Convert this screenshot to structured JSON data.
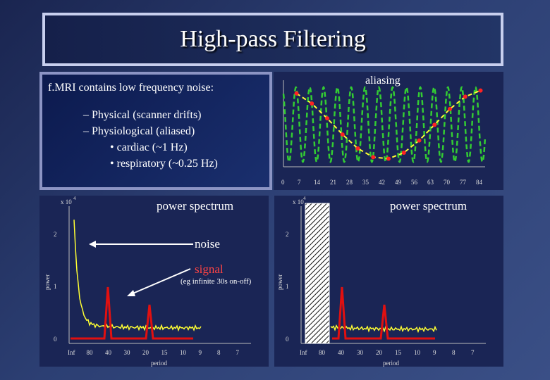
{
  "slide": {
    "title": "High-pass Filtering",
    "intro": "f.MRI contains low frequency noise:",
    "bullets": [
      {
        "text": "Physical (scanner drifts)",
        "level": 1
      },
      {
        "text": "Physiological (aliased)",
        "level": 1
      },
      {
        "text": "cardiac (~1 Hz)",
        "level": 2
      },
      {
        "text": "respiratory (~0.25 Hz)",
        "level": 2
      }
    ],
    "aliasing_label": "aliasing",
    "aliasing_x_ticks": [
      "0",
      "7",
      "14",
      "21",
      "28",
      "35",
      "42",
      "49",
      "56",
      "63",
      "70",
      "77",
      "84"
    ],
    "spectrum_left": {
      "title": "power spectrum",
      "multiplier": "x 10",
      "exponent": "4",
      "y_ticks": [
        "2",
        "1",
        "0"
      ],
      "y_label": "power",
      "x_ticks": [
        "Inf",
        "80",
        "40",
        "30",
        "20",
        "15",
        "10",
        "9",
        "8",
        "7"
      ],
      "x_label": "period",
      "noise_label": "noise",
      "signal_label": "signal",
      "signal_note": "(eg infinite 30s on-off)"
    },
    "spectrum_right": {
      "title": "power spectrum",
      "multiplier": "x 10",
      "exponent": "4",
      "y_ticks": [
        "2",
        "1",
        "0"
      ],
      "y_label": "power",
      "x_ticks": [
        "Inf",
        "80",
        "40",
        "30",
        "20",
        "15",
        "10",
        "9",
        "8",
        "7"
      ],
      "x_label": "period"
    },
    "colors": {
      "signal": "#e11010",
      "noise_trace": "#ffff33",
      "aliasing_wave": "#33cc33",
      "aliased_dots": "#ff2222",
      "aliased_line": "#ffff33",
      "note": "#ff4444"
    }
  }
}
